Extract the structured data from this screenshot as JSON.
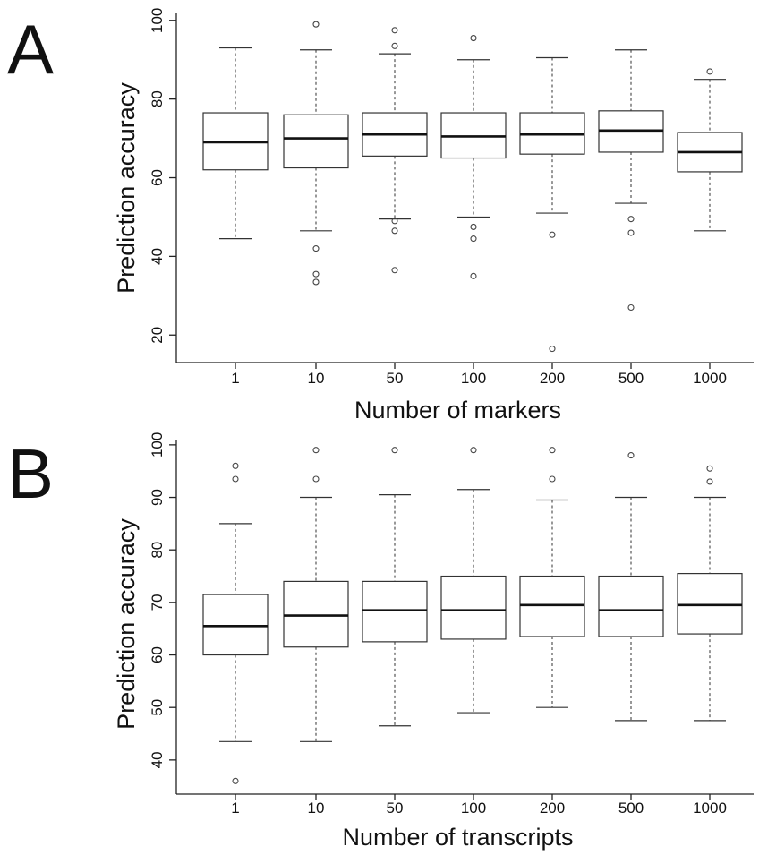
{
  "chart_data": [
    {
      "type": "boxplot",
      "panel": "A",
      "xlabel": "Number of markers",
      "ylabel": "Prediction accuracy",
      "categories": [
        "1",
        "10",
        "50",
        "100",
        "200",
        "500",
        "1000"
      ],
      "ylim": [
        13,
        102
      ],
      "yticks": [
        20,
        40,
        60,
        80,
        100
      ],
      "boxes": [
        {
          "low": 44.5,
          "q1": 62.0,
          "median": 69.0,
          "q3": 76.5,
          "high": 93.0,
          "outliers": []
        },
        {
          "low": 46.5,
          "q1": 62.5,
          "median": 70.0,
          "q3": 76.0,
          "high": 92.5,
          "outliers": [
            99,
            42,
            35.5,
            33.5
          ]
        },
        {
          "low": 49.5,
          "q1": 65.5,
          "median": 71.0,
          "q3": 76.5,
          "high": 91.5,
          "outliers": [
            97.5,
            93.5,
            49.0,
            46.5,
            36.5
          ]
        },
        {
          "low": 50.0,
          "q1": 65.0,
          "median": 70.5,
          "q3": 76.5,
          "high": 90.0,
          "outliers": [
            95.5,
            47.5,
            44.5,
            35.0
          ]
        },
        {
          "low": 51.0,
          "q1": 66.0,
          "median": 71.0,
          "q3": 76.5,
          "high": 90.5,
          "outliers": [
            45.5,
            16.5
          ]
        },
        {
          "low": 53.5,
          "q1": 66.5,
          "median": 72.0,
          "q3": 77.0,
          "high": 92.5,
          "outliers": [
            49.5,
            46.0,
            27.0
          ]
        },
        {
          "low": 46.5,
          "q1": 61.5,
          "median": 66.5,
          "q3": 71.5,
          "high": 85.0,
          "outliers": [
            87.0
          ]
        }
      ]
    },
    {
      "type": "boxplot",
      "panel": "B",
      "xlabel": "Number of transcripts",
      "ylabel": "Prediction accuracy",
      "categories": [
        "1",
        "10",
        "50",
        "100",
        "200",
        "500",
        "1000"
      ],
      "ylim": [
        33.5,
        101
      ],
      "yticks": [
        40,
        50,
        60,
        70,
        80,
        90,
        100
      ],
      "boxes": [
        {
          "low": 43.5,
          "q1": 60.0,
          "median": 65.5,
          "q3": 71.5,
          "high": 85.0,
          "outliers": [
            96.0,
            93.5,
            36.0
          ]
        },
        {
          "low": 43.5,
          "q1": 61.5,
          "median": 67.5,
          "q3": 74.0,
          "high": 90.0,
          "outliers": [
            99.0,
            93.5
          ]
        },
        {
          "low": 46.5,
          "q1": 62.5,
          "median": 68.5,
          "q3": 74.0,
          "high": 90.5,
          "outliers": [
            99.0
          ]
        },
        {
          "low": 49.0,
          "q1": 63.0,
          "median": 68.5,
          "q3": 75.0,
          "high": 91.5,
          "outliers": [
            99.0
          ]
        },
        {
          "low": 50.0,
          "q1": 63.5,
          "median": 69.5,
          "q3": 75.0,
          "high": 89.5,
          "outliers": [
            99.0,
            93.5
          ]
        },
        {
          "low": 47.5,
          "q1": 63.5,
          "median": 68.5,
          "q3": 75.0,
          "high": 90.0,
          "outliers": [
            98.0
          ]
        },
        {
          "low": 47.5,
          "q1": 64.0,
          "median": 69.5,
          "q3": 75.5,
          "high": 90.0,
          "outliers": [
            95.5,
            93.0
          ]
        }
      ]
    }
  ]
}
